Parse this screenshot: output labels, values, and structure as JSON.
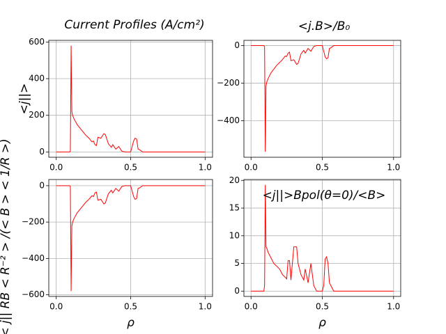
{
  "chart_data": [
    {
      "type": "line",
      "title": "Current Profiles  (A/cm²)",
      "y_label": "<j||>",
      "x": [
        0,
        0.09,
        0.095,
        0.1,
        0.105,
        0.11,
        0.12,
        0.14,
        0.16,
        0.18,
        0.2,
        0.22,
        0.24,
        0.25,
        0.26,
        0.27,
        0.28,
        0.3,
        0.32,
        0.33,
        0.35,
        0.37,
        0.38,
        0.4,
        0.42,
        0.44,
        0.46,
        0.48,
        0.5,
        0.51,
        0.52,
        0.53,
        0.54,
        0.55,
        0.56,
        0.58,
        0.6,
        1.0
      ],
      "values": [
        0,
        0,
        5,
        580,
        220,
        200,
        180,
        150,
        130,
        110,
        90,
        75,
        55,
        60,
        40,
        35,
        80,
        75,
        100,
        95,
        45,
        25,
        40,
        15,
        30,
        5,
        0,
        0,
        0,
        30,
        60,
        75,
        70,
        15,
        12,
        0,
        0,
        0
      ],
      "color": "#ff0000",
      "grid": true,
      "xlim": [
        -0.05,
        1.05
      ],
      "xticks": [
        {
          "value": 0,
          "label": "0.0"
        },
        {
          "value": 0.5,
          "label": "0.5"
        },
        {
          "value": 1,
          "label": "1.0"
        }
      ],
      "ylim": [
        -29,
        609
      ],
      "yticks": [
        0,
        200,
        400,
        600
      ]
    },
    {
      "type": "line",
      "title": "<j.B>/B₀",
      "x": [
        0,
        0.09,
        0.095,
        0.1,
        0.105,
        0.11,
        0.12,
        0.14,
        0.16,
        0.18,
        0.2,
        0.22,
        0.24,
        0.25,
        0.26,
        0.27,
        0.28,
        0.3,
        0.32,
        0.33,
        0.35,
        0.37,
        0.38,
        0.4,
        0.42,
        0.44,
        0.46,
        0.48,
        0.5,
        0.51,
        0.52,
        0.53,
        0.54,
        0.55,
        0.56,
        0.58,
        0.6,
        1.0
      ],
      "values": [
        0,
        0,
        -5,
        -565,
        -215,
        -195,
        -175,
        -145,
        -125,
        -105,
        -90,
        -75,
        -55,
        -58,
        -40,
        -35,
        -80,
        -75,
        -100,
        -95,
        -45,
        -25,
        -40,
        -15,
        -30,
        -5,
        0,
        0,
        0,
        -30,
        -60,
        -70,
        -65,
        -15,
        -12,
        0,
        0,
        0
      ],
      "color": "#ff0000",
      "grid": true,
      "xlim": [
        -0.05,
        1.05
      ],
      "xticks": [
        {
          "value": 0,
          "label": "0.0"
        },
        {
          "value": 0.5,
          "label": "0.5"
        },
        {
          "value": 1,
          "label": "1.0"
        }
      ],
      "ylim": [
        -594,
        28
      ],
      "yticks": [
        0,
        {
          "value": -200,
          "label": "−200"
        },
        {
          "value": -400,
          "label": "−400"
        }
      ]
    },
    {
      "type": "line",
      "y_label": "< j|| RB < R⁻² > /(< B > < 1/R >)",
      "x_label": "ρ",
      "x": [
        0,
        0.09,
        0.095,
        0.1,
        0.105,
        0.11,
        0.12,
        0.14,
        0.16,
        0.18,
        0.2,
        0.22,
        0.24,
        0.25,
        0.26,
        0.27,
        0.28,
        0.3,
        0.32,
        0.33,
        0.35,
        0.37,
        0.38,
        0.4,
        0.42,
        0.44,
        0.46,
        0.48,
        0.5,
        0.51,
        0.52,
        0.53,
        0.54,
        0.55,
        0.56,
        0.58,
        0.6,
        1.0
      ],
      "values": [
        0,
        0,
        -5,
        -580,
        -220,
        -200,
        -180,
        -150,
        -130,
        -110,
        -90,
        -75,
        -55,
        -60,
        -40,
        -35,
        -80,
        -75,
        -100,
        -95,
        -45,
        -25,
        -40,
        -15,
        -30,
        -5,
        0,
        0,
        0,
        -30,
        -60,
        -75,
        -70,
        -15,
        -12,
        0,
        0,
        0
      ],
      "color": "#ff0000",
      "grid": true,
      "xlim": [
        -0.05,
        1.05
      ],
      "xticks": [
        {
          "value": 0,
          "label": "0.0"
        },
        {
          "value": 0.5,
          "label": "0.5"
        },
        {
          "value": 1,
          "label": "1.0"
        }
      ],
      "ylim": [
        -609,
        34
      ],
      "yticks": [
        0,
        {
          "value": -200,
          "label": "−200"
        },
        {
          "value": -400,
          "label": "−400"
        },
        {
          "value": -600,
          "label": "−600"
        }
      ]
    },
    {
      "type": "line",
      "title": "<j||>Bpol(θ=0)/<B>",
      "x_label": "ρ",
      "x": [
        0,
        0.09,
        0.095,
        0.1,
        0.105,
        0.11,
        0.12,
        0.14,
        0.16,
        0.18,
        0.2,
        0.22,
        0.24,
        0.25,
        0.26,
        0.27,
        0.28,
        0.3,
        0.32,
        0.33,
        0.35,
        0.37,
        0.38,
        0.4,
        0.42,
        0.44,
        0.46,
        0.48,
        0.5,
        0.51,
        0.52,
        0.53,
        0.54,
        0.55,
        0.56,
        0.58,
        0.6,
        1.0
      ],
      "values": [
        0,
        0,
        1,
        19.2,
        8,
        7.8,
        7,
        6,
        5,
        4.5,
        4,
        3,
        2.5,
        2.2,
        5.5,
        5.5,
        2,
        8,
        8,
        5,
        3,
        2,
        4,
        1.5,
        5,
        1,
        0,
        0,
        0,
        1,
        5.8,
        6.2,
        5,
        1.5,
        1,
        0,
        0,
        0
      ],
      "color": "#ff0000",
      "grid": true,
      "xlim": [
        -0.05,
        1.05
      ],
      "xticks": [
        {
          "value": 0,
          "label": "0.0"
        },
        {
          "value": 0.5,
          "label": "0.5"
        },
        {
          "value": 1,
          "label": "1.0"
        }
      ],
      "ylim": [
        -0.96,
        20.16
      ],
      "yticks": [
        0,
        5,
        10,
        15,
        20
      ]
    }
  ]
}
